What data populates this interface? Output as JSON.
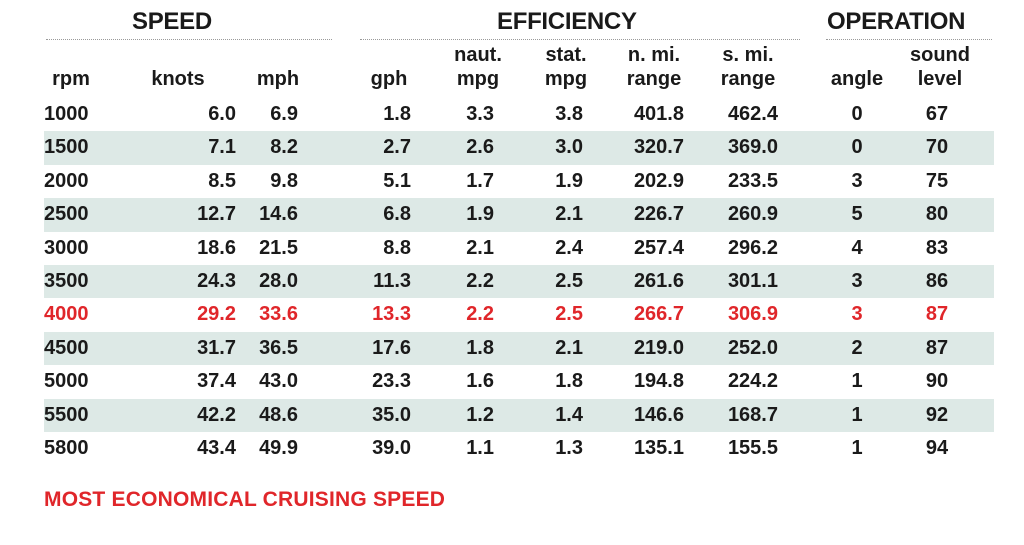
{
  "groups": {
    "speed": "SPEED",
    "efficiency": "EFFICIENCY",
    "operation": "OPERATION"
  },
  "columns": {
    "rpm": "rpm",
    "knots": "knots",
    "mph": "mph",
    "gph": "gph",
    "naut_mpg": [
      "naut.",
      "mpg"
    ],
    "stat_mpg": [
      "stat.",
      "mpg"
    ],
    "n_mi_range": [
      "n. mi.",
      "range"
    ],
    "s_mi_range": [
      "s. mi.",
      "range"
    ],
    "angle": "angle",
    "sound_level": [
      "sound",
      "level"
    ]
  },
  "rows": [
    {
      "rpm": "1000",
      "knots": "6.0",
      "mph": "6.9",
      "gph": "1.8",
      "naut_mpg": "3.3",
      "stat_mpg": "3.8",
      "n_mi_range": "401.8",
      "s_mi_range": "462.4",
      "angle": "0",
      "sound_level": "67"
    },
    {
      "rpm": "1500",
      "knots": "7.1",
      "mph": "8.2",
      "gph": "2.7",
      "naut_mpg": "2.6",
      "stat_mpg": "3.0",
      "n_mi_range": "320.7",
      "s_mi_range": "369.0",
      "angle": "0",
      "sound_level": "70"
    },
    {
      "rpm": "2000",
      "knots": "8.5",
      "mph": "9.8",
      "gph": "5.1",
      "naut_mpg": "1.7",
      "stat_mpg": "1.9",
      "n_mi_range": "202.9",
      "s_mi_range": "233.5",
      "angle": "3",
      "sound_level": "75"
    },
    {
      "rpm": "2500",
      "knots": "12.7",
      "mph": "14.6",
      "gph": "6.8",
      "naut_mpg": "1.9",
      "stat_mpg": "2.1",
      "n_mi_range": "226.7",
      "s_mi_range": "260.9",
      "angle": "5",
      "sound_level": "80"
    },
    {
      "rpm": "3000",
      "knots": "18.6",
      "mph": "21.5",
      "gph": "8.8",
      "naut_mpg": "2.1",
      "stat_mpg": "2.4",
      "n_mi_range": "257.4",
      "s_mi_range": "296.2",
      "angle": "4",
      "sound_level": "83"
    },
    {
      "rpm": "3500",
      "knots": "24.3",
      "mph": "28.0",
      "gph": "11.3",
      "naut_mpg": "2.2",
      "stat_mpg": "2.5",
      "n_mi_range": "261.6",
      "s_mi_range": "301.1",
      "angle": "3",
      "sound_level": "86"
    },
    {
      "rpm": "4000",
      "knots": "29.2",
      "mph": "33.6",
      "gph": "13.3",
      "naut_mpg": "2.2",
      "stat_mpg": "2.5",
      "n_mi_range": "266.7",
      "s_mi_range": "306.9",
      "angle": "3",
      "sound_level": "87",
      "highlight": true
    },
    {
      "rpm": "4500",
      "knots": "31.7",
      "mph": "36.5",
      "gph": "17.6",
      "naut_mpg": "1.8",
      "stat_mpg": "2.1",
      "n_mi_range": "219.0",
      "s_mi_range": "252.0",
      "angle": "2",
      "sound_level": "87"
    },
    {
      "rpm": "5000",
      "knots": "37.4",
      "mph": "43.0",
      "gph": "23.3",
      "naut_mpg": "1.6",
      "stat_mpg": "1.8",
      "n_mi_range": "194.8",
      "s_mi_range": "224.2",
      "angle": "1",
      "sound_level": "90"
    },
    {
      "rpm": "5500",
      "knots": "42.2",
      "mph": "48.6",
      "gph": "35.0",
      "naut_mpg": "1.2",
      "stat_mpg": "1.4",
      "n_mi_range": "146.6",
      "s_mi_range": "168.7",
      "angle": "1",
      "sound_level": "92"
    },
    {
      "rpm": "5800",
      "knots": "43.4",
      "mph": "49.9",
      "gph": "39.0",
      "naut_mpg": "1.1",
      "stat_mpg": "1.3",
      "n_mi_range": "135.1",
      "s_mi_range": "155.5",
      "angle": "1",
      "sound_level": "94"
    }
  ],
  "footnote": "MOST ECONOMICAL CRUISING SPEED",
  "colors": {
    "highlight": "#e0262a",
    "shade": "#dde9e6",
    "text": "#1a1a1a"
  }
}
